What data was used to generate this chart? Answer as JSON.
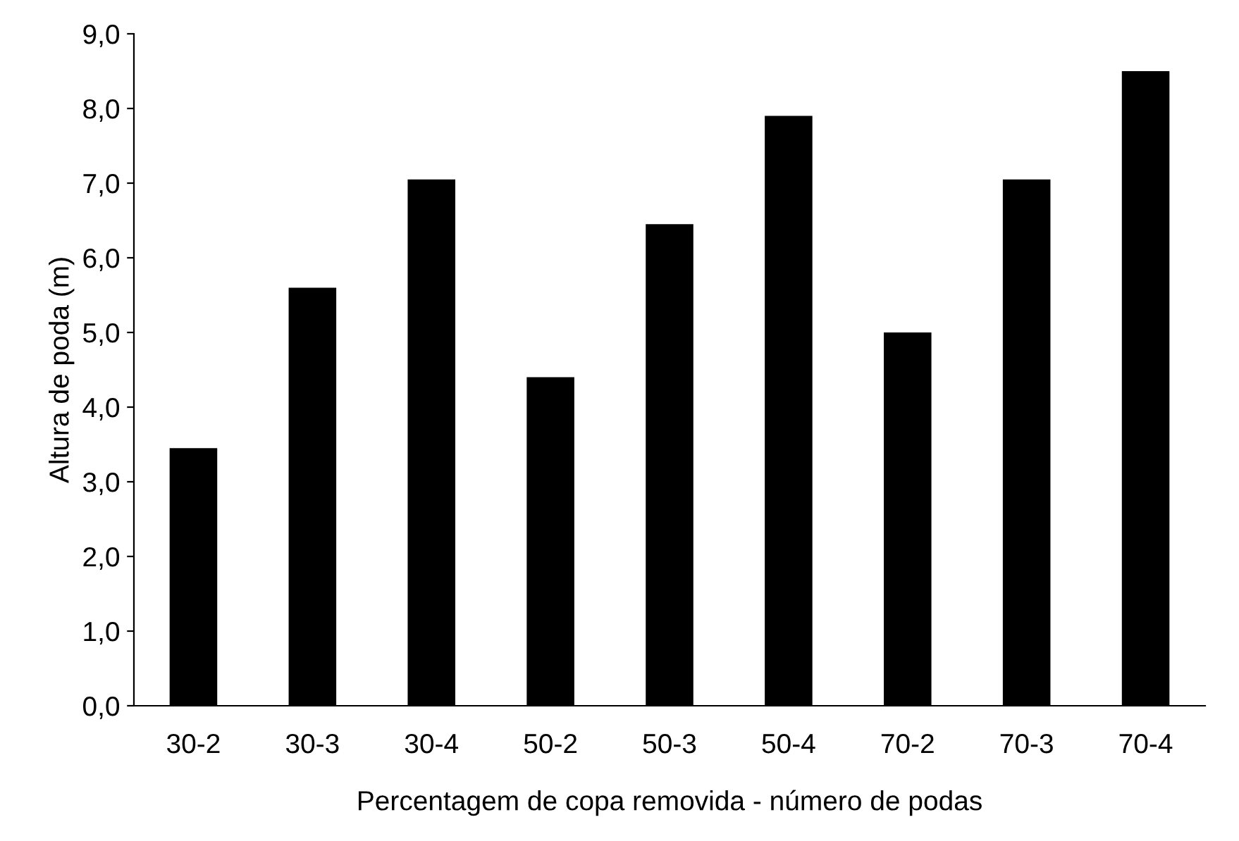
{
  "chart_data": {
    "type": "bar",
    "xlabel": "Percentagem de copa removida - número de podas",
    "ylabel": "Altura de poda (m)",
    "categories": [
      "30-2",
      "30-3",
      "30-4",
      "50-2",
      "50-3",
      "50-4",
      "70-2",
      "70-3",
      "70-4"
    ],
    "values": [
      3.45,
      5.6,
      7.05,
      4.4,
      6.45,
      7.9,
      5.0,
      7.05,
      8.5
    ],
    "color": "#000000",
    "ylim": [
      0,
      9
    ],
    "yticks": [
      {
        "value": 0,
        "label": "0,0"
      },
      {
        "value": 1,
        "label": "1,0"
      },
      {
        "value": 2,
        "label": "2,0"
      },
      {
        "value": 3,
        "label": "3,0"
      },
      {
        "value": 4,
        "label": "4,0"
      },
      {
        "value": 5,
        "label": "5,0"
      },
      {
        "value": 6,
        "label": "6,0"
      },
      {
        "value": 7,
        "label": "7,0"
      },
      {
        "value": 8,
        "label": "8,0"
      },
      {
        "value": 9,
        "label": "9,0"
      }
    ],
    "grid": false
  }
}
